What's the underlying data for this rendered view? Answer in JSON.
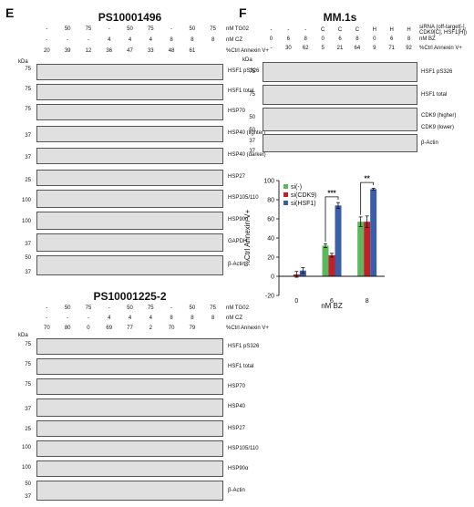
{
  "panel_e": {
    "letter": "E",
    "blot1": {
      "title": "PS10001496",
      "header_rows": [
        {
          "label": "nM TG02",
          "values": [
            "-",
            "50",
            "75",
            "-",
            "50",
            "75",
            "-",
            "50",
            "75"
          ]
        },
        {
          "label": "nM CZ",
          "values": [
            "-",
            "-",
            "-",
            "4",
            "4",
            "4",
            "8",
            "8",
            "8"
          ]
        },
        {
          "label": "%Ctrl Annexin V+",
          "values": [
            "20",
            "39",
            "12",
            "36",
            "47",
            "33",
            "48",
            "61"
          ]
        }
      ],
      "kda": "kDa",
      "bands": [
        {
          "label": "HSF1 pS326",
          "mw": "75"
        },
        {
          "label": "HSF1 total",
          "mw": "75"
        },
        {
          "label": "HSP70",
          "mw": "75"
        },
        {
          "label": "HSP40 (lighter)",
          "mw": "37"
        },
        {
          "label": "HSP40 (darker)",
          "mw": "37"
        },
        {
          "label": "HSP27",
          "mw": "25"
        },
        {
          "label": "HSP105/110",
          "mw": "100"
        },
        {
          "label": "HSP90α",
          "mw": "100"
        },
        {
          "label": "GAPDH",
          "mw": "37"
        },
        {
          "label": "β-Actin",
          "mw": "50"
        }
      ],
      "mw_extra": [
        "37"
      ]
    },
    "blot2": {
      "title": "PS10001225-2",
      "header_rows": [
        {
          "label": "nM TG02",
          "values": [
            "-",
            "50",
            "75",
            "-",
            "50",
            "75",
            "-",
            "50",
            "75"
          ]
        },
        {
          "label": "nM CZ",
          "values": [
            "-",
            "-",
            "-",
            "4",
            "4",
            "4",
            "8",
            "8",
            "8"
          ]
        },
        {
          "label": "%Ctrl Annexin V+",
          "values": [
            "70",
            "80",
            "0",
            "69",
            "77",
            "2",
            "70",
            "79"
          ]
        }
      ],
      "kda": "kDa",
      "bands": [
        {
          "label": "HSF1 pS326",
          "mw": "75"
        },
        {
          "label": "HSF1 total",
          "mw": "75"
        },
        {
          "label": "HSP70",
          "mw": "75"
        },
        {
          "label": "HSP40",
          "mw": "37"
        },
        {
          "label": "HSP27",
          "mw": "25"
        },
        {
          "label": "HSP105/110",
          "mw": "100"
        },
        {
          "label": "HSP90α",
          "mw": "100"
        },
        {
          "label": "β-Actin",
          "mw": "50"
        }
      ],
      "mw_extra": [
        "37"
      ]
    }
  },
  "panel_f": {
    "letter": "F",
    "blot": {
      "title": "MM.1s",
      "header_rows": [
        {
          "label": "siRNA (off-target[-], CDK9[C], HSF1[H])",
          "values": [
            "-",
            "-",
            "-",
            "C",
            "C",
            "C",
            "H",
            "H",
            "H"
          ]
        },
        {
          "label": "nM BZ",
          "values": [
            "0",
            "6",
            "8",
            "0",
            "6",
            "8",
            "0",
            "6",
            "8"
          ]
        },
        {
          "label": "%Ctrl Annexin V+",
          "values": [
            "-",
            "30",
            "62",
            "5",
            "21",
            "64",
            "9",
            "71",
            "92"
          ]
        }
      ],
      "kda": "kDa",
      "bands": [
        {
          "label": "HSF1 pS326",
          "mw": "75"
        },
        {
          "label": "HSF1 total",
          "mw": "75"
        },
        {
          "label": "CDK9 (higher)",
          "mw": "50"
        },
        {
          "label": "CDK9 (lower)",
          "mw": "50"
        },
        {
          "label": "β-Actin",
          "mw": "37"
        }
      ],
      "mw_extra": [
        "37"
      ]
    },
    "colors": {
      "si_neg": "#5cb85c",
      "si_cdk9": "#c0202a",
      "si_hsf1": "#3a5ea8"
    },
    "chart_data": {
      "type": "bar",
      "categories": [
        "0",
        "6",
        "8"
      ],
      "xlabel": "nM BZ",
      "ylabel": "%Ctrl Annexin V+",
      "ylim": [
        -20,
        100
      ],
      "yticks": [
        "-20",
        "0",
        "20",
        "40",
        "60",
        "80",
        "100"
      ],
      "series": [
        {
          "name": "si(-)",
          "values": [
            0,
            32,
            57
          ],
          "errors": [
            0,
            2,
            5
          ]
        },
        {
          "name": "si(CDK9)",
          "values": [
            2,
            22,
            57
          ],
          "errors": [
            3,
            2,
            6
          ]
        },
        {
          "name": "si(HSF1)",
          "values": [
            6,
            74,
            91
          ],
          "errors": [
            3,
            3,
            1
          ]
        }
      ],
      "annotations": [
        {
          "text": "***",
          "category": "6"
        },
        {
          "text": "**",
          "category": "8"
        }
      ],
      "legend_position": "top-left"
    }
  }
}
